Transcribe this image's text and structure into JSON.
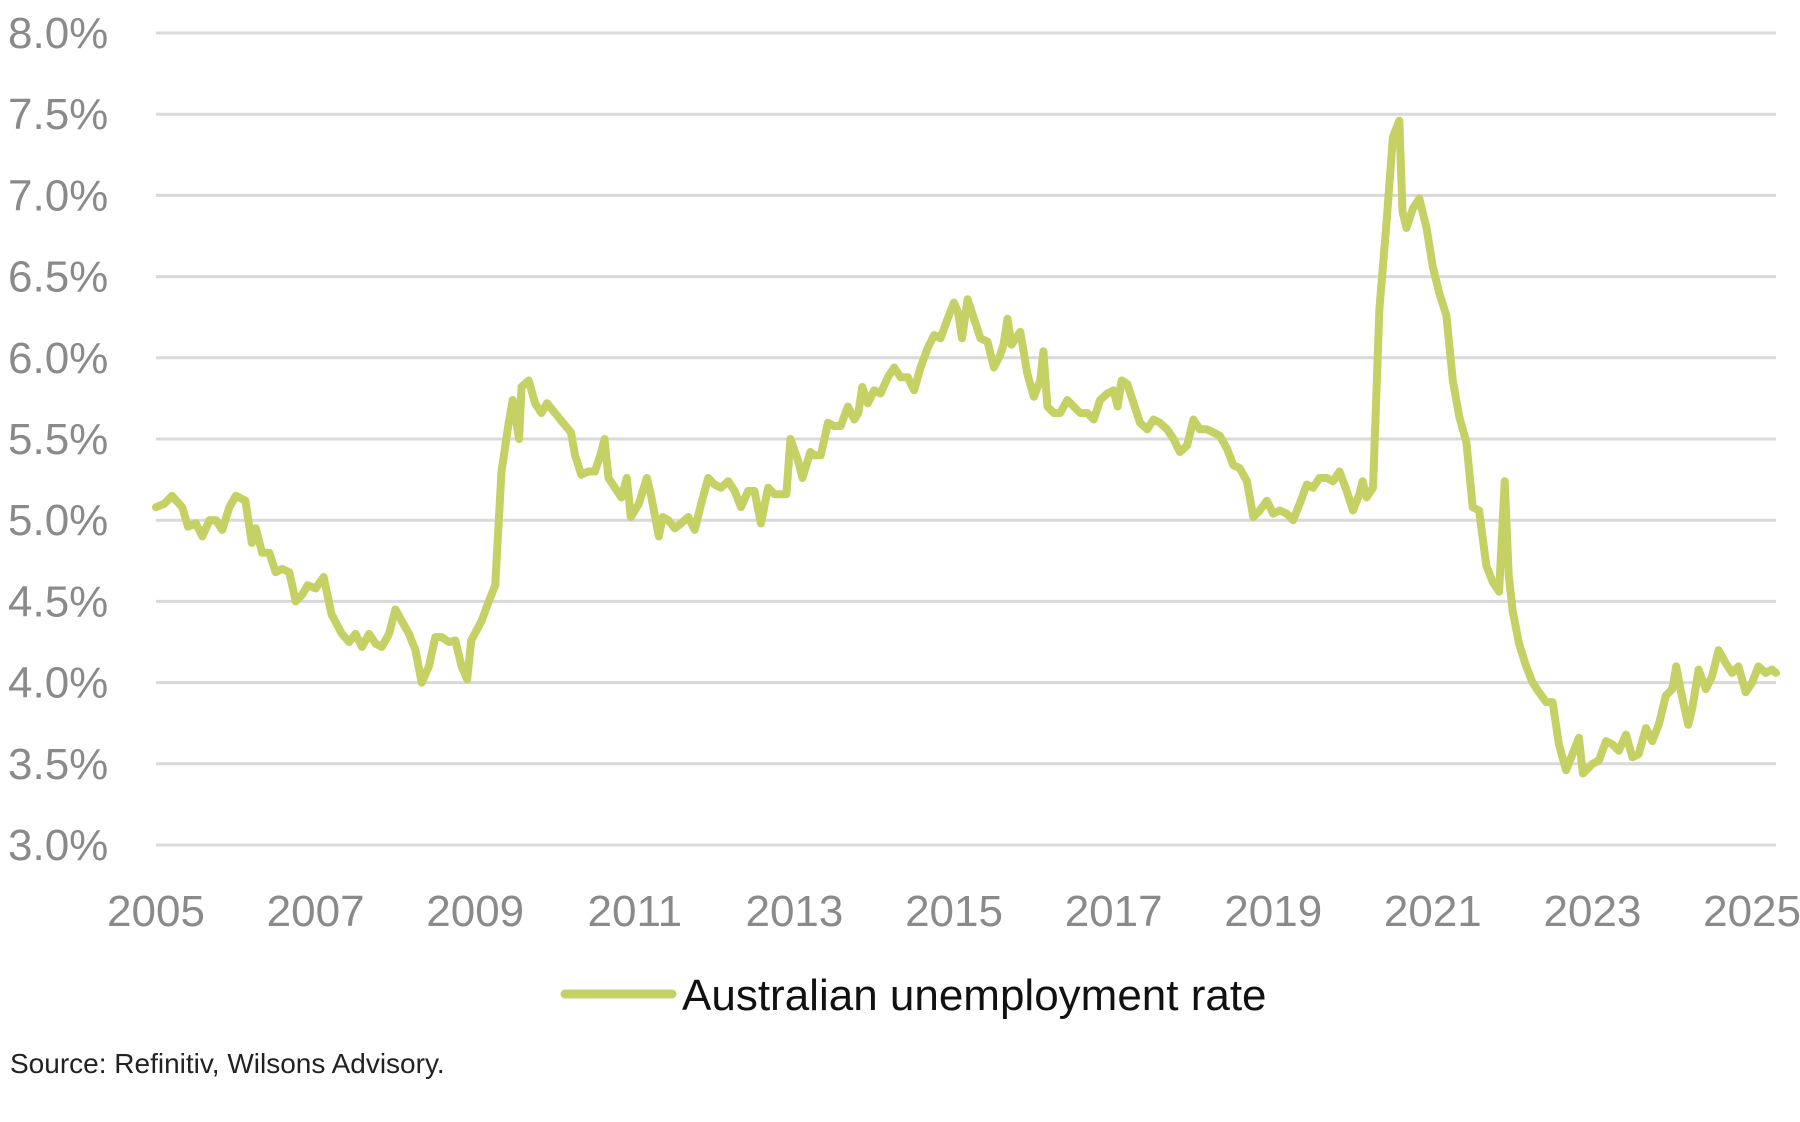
{
  "chart_data": {
    "type": "line",
    "title": "",
    "xlabel": "",
    "ylabel": "",
    "x_ticks": [
      "2005",
      "2007",
      "2009",
      "2011",
      "2013",
      "2015",
      "2017",
      "2019",
      "2021",
      "2023",
      "2025"
    ],
    "y_ticks": [
      "8.0%",
      "7.5%",
      "7.0%",
      "6.5%",
      "6.0%",
      "5.5%",
      "5.0%",
      "4.5%",
      "4.0%",
      "3.5%",
      "3.0%"
    ],
    "xlim": [
      2005.0,
      2025.3
    ],
    "ylim": [
      3.0,
      8.0
    ],
    "grid": "horizontal",
    "legend_position": "bottom-center",
    "series_color": "#c5d165",
    "grid_color": "#d9d9d9",
    "series": [
      {
        "name": "Australian unemployment rate",
        "points": [
          [
            2005.0,
            5.08
          ],
          [
            2005.1,
            5.1
          ],
          [
            2005.2,
            5.15
          ],
          [
            2005.33,
            5.08
          ],
          [
            2005.4,
            4.96
          ],
          [
            2005.5,
            4.98
          ],
          [
            2005.58,
            4.9
          ],
          [
            2005.67,
            5.0
          ],
          [
            2005.75,
            5.0
          ],
          [
            2005.83,
            4.94
          ],
          [
            2005.92,
            5.08
          ],
          [
            2006.0,
            5.15
          ],
          [
            2006.12,
            5.12
          ],
          [
            2006.2,
            4.86
          ],
          [
            2006.25,
            4.95
          ],
          [
            2006.33,
            4.8
          ],
          [
            2006.42,
            4.8
          ],
          [
            2006.5,
            4.68
          ],
          [
            2006.58,
            4.7
          ],
          [
            2006.67,
            4.68
          ],
          [
            2006.75,
            4.5
          ],
          [
            2006.83,
            4.54
          ],
          [
            2006.9,
            4.6
          ],
          [
            2007.0,
            4.58
          ],
          [
            2007.1,
            4.65
          ],
          [
            2007.2,
            4.42
          ],
          [
            2007.33,
            4.3
          ],
          [
            2007.42,
            4.25
          ],
          [
            2007.5,
            4.3
          ],
          [
            2007.58,
            4.22
          ],
          [
            2007.67,
            4.3
          ],
          [
            2007.75,
            4.24
          ],
          [
            2007.83,
            4.22
          ],
          [
            2007.92,
            4.3
          ],
          [
            2008.0,
            4.45
          ],
          [
            2008.17,
            4.3
          ],
          [
            2008.25,
            4.2
          ],
          [
            2008.33,
            4.0
          ],
          [
            2008.42,
            4.1
          ],
          [
            2008.5,
            4.28
          ],
          [
            2008.58,
            4.28
          ],
          [
            2008.67,
            4.25
          ],
          [
            2008.75,
            4.26
          ],
          [
            2008.83,
            4.1
          ],
          [
            2008.9,
            4.02
          ],
          [
            2008.95,
            4.26
          ],
          [
            2009.08,
            4.38
          ],
          [
            2009.17,
            4.5
          ],
          [
            2009.25,
            4.6
          ],
          [
            2009.33,
            5.3
          ],
          [
            2009.42,
            5.6
          ],
          [
            2009.47,
            5.74
          ],
          [
            2009.55,
            5.5
          ],
          [
            2009.58,
            5.82
          ],
          [
            2009.67,
            5.86
          ],
          [
            2009.75,
            5.72
          ],
          [
            2009.83,
            5.66
          ],
          [
            2009.9,
            5.72
          ],
          [
            2010.0,
            5.66
          ],
          [
            2010.1,
            5.6
          ],
          [
            2010.2,
            5.54
          ],
          [
            2010.25,
            5.4
          ],
          [
            2010.33,
            5.28
          ],
          [
            2010.42,
            5.3
          ],
          [
            2010.5,
            5.3
          ],
          [
            2010.58,
            5.42
          ],
          [
            2010.62,
            5.5
          ],
          [
            2010.67,
            5.26
          ],
          [
            2010.75,
            5.2
          ],
          [
            2010.83,
            5.14
          ],
          [
            2010.9,
            5.26
          ],
          [
            2010.95,
            5.02
          ],
          [
            2011.05,
            5.1
          ],
          [
            2011.15,
            5.26
          ],
          [
            2011.2,
            5.16
          ],
          [
            2011.3,
            4.9
          ],
          [
            2011.35,
            5.02
          ],
          [
            2011.42,
            5.0
          ],
          [
            2011.5,
            4.95
          ],
          [
            2011.58,
            4.98
          ],
          [
            2011.67,
            5.02
          ],
          [
            2011.75,
            4.94
          ],
          [
            2011.83,
            5.1
          ],
          [
            2011.92,
            5.26
          ],
          [
            2012.0,
            5.22
          ],
          [
            2012.08,
            5.2
          ],
          [
            2012.17,
            5.24
          ],
          [
            2012.25,
            5.18
          ],
          [
            2012.33,
            5.08
          ],
          [
            2012.42,
            5.18
          ],
          [
            2012.5,
            5.18
          ],
          [
            2012.58,
            4.98
          ],
          [
            2012.67,
            5.2
          ],
          [
            2012.75,
            5.16
          ],
          [
            2012.83,
            5.16
          ],
          [
            2012.9,
            5.16
          ],
          [
            2012.95,
            5.5
          ],
          [
            2013.05,
            5.36
          ],
          [
            2013.1,
            5.26
          ],
          [
            2013.2,
            5.42
          ],
          [
            2013.25,
            5.4
          ],
          [
            2013.33,
            5.4
          ],
          [
            2013.42,
            5.6
          ],
          [
            2013.5,
            5.58
          ],
          [
            2013.58,
            5.58
          ],
          [
            2013.67,
            5.7
          ],
          [
            2013.75,
            5.62
          ],
          [
            2013.8,
            5.66
          ],
          [
            2013.85,
            5.82
          ],
          [
            2013.92,
            5.72
          ],
          [
            2014.0,
            5.8
          ],
          [
            2014.08,
            5.78
          ],
          [
            2014.17,
            5.88
          ],
          [
            2014.25,
            5.94
          ],
          [
            2014.33,
            5.88
          ],
          [
            2014.42,
            5.88
          ],
          [
            2014.5,
            5.8
          ],
          [
            2014.58,
            5.94
          ],
          [
            2014.67,
            6.06
          ],
          [
            2014.75,
            6.14
          ],
          [
            2014.83,
            6.12
          ],
          [
            2014.92,
            6.24
          ],
          [
            2015.0,
            6.34
          ],
          [
            2015.05,
            6.28
          ],
          [
            2015.1,
            6.12
          ],
          [
            2015.17,
            6.36
          ],
          [
            2015.25,
            6.24
          ],
          [
            2015.33,
            6.12
          ],
          [
            2015.42,
            6.1
          ],
          [
            2015.5,
            5.94
          ],
          [
            2015.58,
            6.02
          ],
          [
            2015.62,
            6.08
          ],
          [
            2015.67,
            6.24
          ],
          [
            2015.72,
            6.08
          ],
          [
            2015.83,
            6.16
          ],
          [
            2015.92,
            5.9
          ],
          [
            2016.0,
            5.76
          ],
          [
            2016.08,
            5.86
          ],
          [
            2016.12,
            6.04
          ],
          [
            2016.17,
            5.7
          ],
          [
            2016.25,
            5.66
          ],
          [
            2016.33,
            5.66
          ],
          [
            2016.42,
            5.74
          ],
          [
            2016.5,
            5.7
          ],
          [
            2016.58,
            5.66
          ],
          [
            2016.67,
            5.66
          ],
          [
            2016.75,
            5.62
          ],
          [
            2016.83,
            5.74
          ],
          [
            2016.92,
            5.78
          ],
          [
            2017.0,
            5.8
          ],
          [
            2017.05,
            5.7
          ],
          [
            2017.1,
            5.86
          ],
          [
            2017.17,
            5.84
          ],
          [
            2017.25,
            5.72
          ],
          [
            2017.33,
            5.6
          ],
          [
            2017.42,
            5.56
          ],
          [
            2017.5,
            5.62
          ],
          [
            2017.58,
            5.6
          ],
          [
            2017.67,
            5.56
          ],
          [
            2017.75,
            5.5
          ],
          [
            2017.83,
            5.42
          ],
          [
            2017.92,
            5.46
          ],
          [
            2018.0,
            5.62
          ],
          [
            2018.08,
            5.56
          ],
          [
            2018.17,
            5.56
          ],
          [
            2018.25,
            5.54
          ],
          [
            2018.33,
            5.52
          ],
          [
            2018.42,
            5.44
          ],
          [
            2018.5,
            5.34
          ],
          [
            2018.58,
            5.32
          ],
          [
            2018.67,
            5.24
          ],
          [
            2018.75,
            5.02
          ],
          [
            2018.83,
            5.06
          ],
          [
            2018.92,
            5.12
          ],
          [
            2019.0,
            5.04
          ],
          [
            2019.08,
            5.06
          ],
          [
            2019.17,
            5.04
          ],
          [
            2019.25,
            5.0
          ],
          [
            2019.33,
            5.1
          ],
          [
            2019.42,
            5.22
          ],
          [
            2019.5,
            5.2
          ],
          [
            2019.58,
            5.26
          ],
          [
            2019.67,
            5.26
          ],
          [
            2019.75,
            5.24
          ],
          [
            2019.83,
            5.3
          ],
          [
            2019.92,
            5.18
          ],
          [
            2020.0,
            5.06
          ],
          [
            2020.08,
            5.16
          ],
          [
            2020.12,
            5.24
          ],
          [
            2020.17,
            5.14
          ],
          [
            2020.25,
            5.2
          ],
          [
            2020.33,
            6.3
          ],
          [
            2020.42,
            6.84
          ],
          [
            2020.5,
            7.36
          ],
          [
            2020.58,
            7.46
          ],
          [
            2020.62,
            6.9
          ],
          [
            2020.67,
            6.8
          ],
          [
            2020.75,
            6.92
          ],
          [
            2020.83,
            6.98
          ],
          [
            2020.92,
            6.8
          ],
          [
            2021.0,
            6.56
          ],
          [
            2021.08,
            6.4
          ],
          [
            2021.17,
            6.26
          ],
          [
            2021.25,
            5.86
          ],
          [
            2021.33,
            5.64
          ],
          [
            2021.42,
            5.48
          ],
          [
            2021.5,
            5.08
          ],
          [
            2021.58,
            5.06
          ],
          [
            2021.67,
            4.72
          ],
          [
            2021.75,
            4.62
          ],
          [
            2021.83,
            4.56
          ],
          [
            2021.9,
            5.24
          ],
          [
            2021.95,
            4.66
          ],
          [
            2022.0,
            4.44
          ],
          [
            2022.08,
            4.24
          ],
          [
            2022.17,
            4.1
          ],
          [
            2022.25,
            4.0
          ],
          [
            2022.33,
            3.94
          ],
          [
            2022.42,
            3.88
          ],
          [
            2022.5,
            3.88
          ],
          [
            2022.58,
            3.62
          ],
          [
            2022.67,
            3.46
          ],
          [
            2022.75,
            3.56
          ],
          [
            2022.83,
            3.66
          ],
          [
            2022.88,
            3.44
          ],
          [
            2023.0,
            3.5
          ],
          [
            2023.08,
            3.52
          ],
          [
            2023.17,
            3.64
          ],
          [
            2023.25,
            3.62
          ],
          [
            2023.33,
            3.58
          ],
          [
            2023.42,
            3.68
          ],
          [
            2023.5,
            3.54
          ],
          [
            2023.58,
            3.56
          ],
          [
            2023.67,
            3.72
          ],
          [
            2023.75,
            3.64
          ],
          [
            2023.83,
            3.74
          ],
          [
            2023.92,
            3.92
          ],
          [
            2024.0,
            3.96
          ],
          [
            2024.05,
            4.1
          ],
          [
            2024.12,
            3.92
          ],
          [
            2024.2,
            3.74
          ],
          [
            2024.25,
            3.84
          ],
          [
            2024.33,
            4.08
          ],
          [
            2024.42,
            3.96
          ],
          [
            2024.5,
            4.04
          ],
          [
            2024.58,
            4.2
          ],
          [
            2024.67,
            4.12
          ],
          [
            2024.75,
            4.06
          ],
          [
            2024.83,
            4.1
          ],
          [
            2024.92,
            3.94
          ],
          [
            2025.0,
            4.0
          ],
          [
            2025.08,
            4.1
          ],
          [
            2025.17,
            4.06
          ],
          [
            2025.25,
            4.08
          ],
          [
            2025.3,
            4.06
          ]
        ]
      }
    ],
    "source": "Source: Refinitiv, Wilsons Advisory."
  }
}
